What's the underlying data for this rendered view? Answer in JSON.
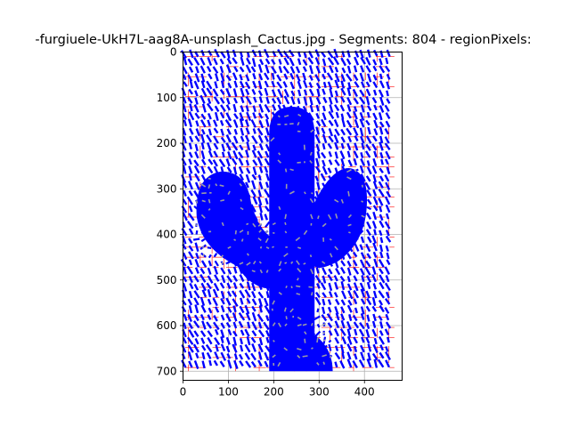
{
  "chart_data": {
    "type": "scatter",
    "title": "-furgiuele-UkH7L-aag8A-unsplash_Cactus.jpg - Segments: 804 - regionPixels:",
    "xlabel": "",
    "ylabel": "",
    "xlim": [
      0,
      483
    ],
    "ylim": [
      720,
      0
    ],
    "xticks": [
      0,
      100,
      200,
      300,
      400
    ],
    "yticks": [
      0,
      100,
      200,
      300,
      400,
      500,
      600,
      700
    ],
    "grid": true,
    "image": {
      "width": 466,
      "height": 700,
      "content": "cactus"
    },
    "segments": {
      "count": 804,
      "color": "#0000ff",
      "highlight_color": "#9a9aa6",
      "region_line_color": "#ff0000"
    }
  }
}
